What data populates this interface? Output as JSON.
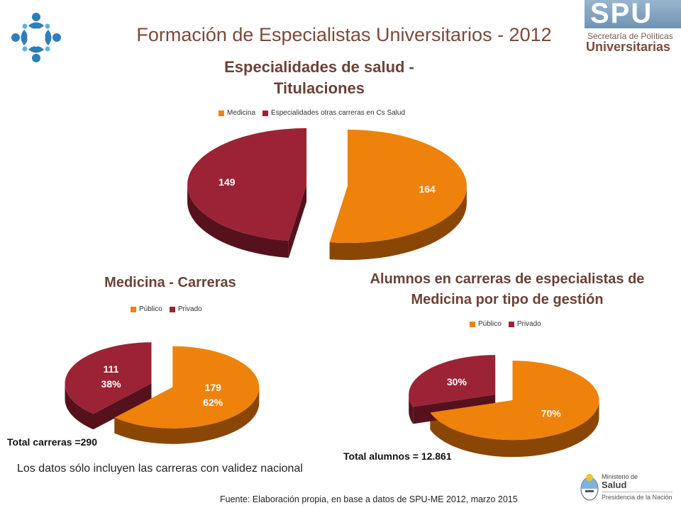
{
  "header": {
    "title": "Formación de Especialistas Universitarios - 2012",
    "logo_left_icon": "circular-people-logo-icon",
    "logo_right": {
      "acronym": "SPU",
      "line1": "Secretaría de Políticas",
      "line2": "Universitarias"
    }
  },
  "colors": {
    "orange": "#EE820A",
    "orange_dark": "#8A4604",
    "red": "#9B2335",
    "red_dark": "#55121C"
  },
  "chart_data": [
    {
      "type": "pie",
      "title": "Especialidades de salud - Titulaciones",
      "categories": [
        "Medicina",
        "Especialidades otras carreras en Cs Salud"
      ],
      "values": [
        164,
        149
      ],
      "data_labels": [
        "164",
        "149"
      ],
      "legend_position": "top"
    },
    {
      "type": "pie",
      "title": "Medicina - Carreras",
      "categories": [
        "Público",
        "Privado"
      ],
      "values": [
        179,
        111
      ],
      "data_labels": [
        "179\n62%",
        "111\n38%"
      ],
      "legend_position": "top",
      "note": "Total carreras =290"
    },
    {
      "type": "pie",
      "title": "Alumnos en carreras de especialistas de Medicina por tipo de gestión",
      "categories": [
        "Público",
        "Privado"
      ],
      "values": [
        70,
        30
      ],
      "data_labels": [
        "70%",
        "30%"
      ],
      "legend_position": "top",
      "note": "Total alumnos = 12.861"
    }
  ],
  "footer": {
    "disclaimer": "Los datos sólo incluyen las carreras con validez nacional",
    "source": "Fuente: Elaboración propia, en base a  datos de SPU-ME   2012, marzo 2015",
    "ministry_logo": {
      "line1": "Ministerio de",
      "line2": "Salud",
      "line3": "Presidencia de la Nación"
    }
  }
}
